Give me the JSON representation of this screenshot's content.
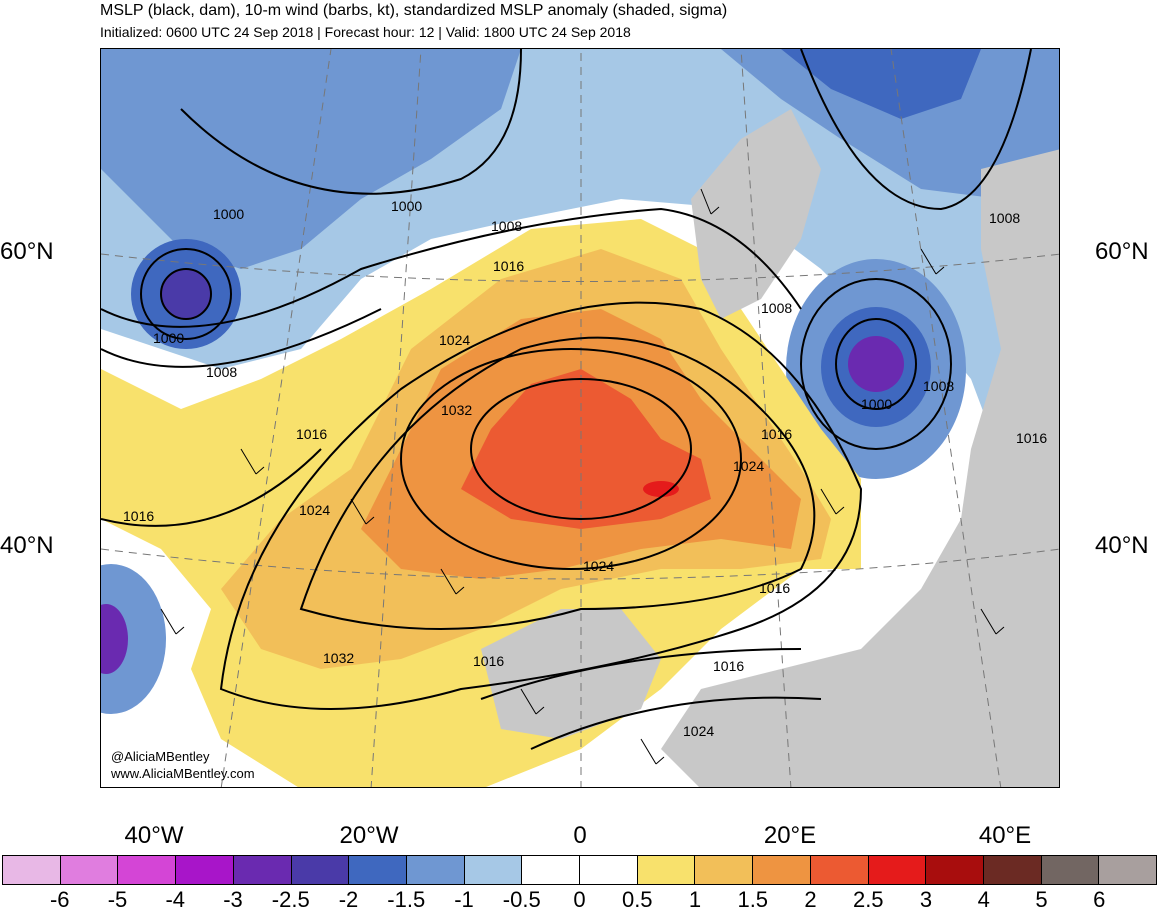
{
  "header": {
    "title": "MSLP (black, dam), 10-m wind (barbs, kt), standardized MSLP anomaly (shaded, sigma)",
    "subtitle": "Initialized: 0600 UTC 24 Sep 2018 | Forecast hour: 12 | Valid: 1800 UTC 24 Sep 2018"
  },
  "map": {
    "lat_labels": [
      "60°N",
      "40°N"
    ],
    "lon_labels": [
      "40°W",
      "20°W",
      "0",
      "20°E",
      "40°E"
    ],
    "credit_line1": "@AliciaMBentley",
    "credit_line2": "www.AliciaMBentley.com",
    "contour_labels": [
      "1000",
      "1000",
      "1000",
      "1000",
      "1008",
      "1008",
      "1008",
      "1008",
      "1008",
      "1016",
      "1016",
      "1016",
      "1016",
      "1016",
      "1016",
      "1016",
      "1016",
      "1024",
      "1024",
      "1024",
      "1024",
      "1024",
      "1032",
      "1032"
    ],
    "land_color": "#c8c8c8"
  },
  "colorbar": {
    "ticks": [
      "-6",
      "-5",
      "-4",
      "-3",
      "-2.5",
      "-2",
      "-1.5",
      "-1",
      "-0.5",
      "0",
      "0.5",
      "1",
      "1.5",
      "2",
      "2.5",
      "3",
      "4",
      "5",
      "6"
    ],
    "colors": [
      "#e8b8e6",
      "#e07ddf",
      "#d445d6",
      "#a815c9",
      "#6a2ab0",
      "#4a3aa8",
      "#3f68bf",
      "#6f97d2",
      "#a6c8e6",
      "#ffffff",
      "#ffffff",
      "#f8e16c",
      "#f2bf59",
      "#ee9441",
      "#ec5a32",
      "#e51b1b",
      "#a80d0d",
      "#6b2a23",
      "#726662",
      "#a89f9e"
    ]
  }
}
